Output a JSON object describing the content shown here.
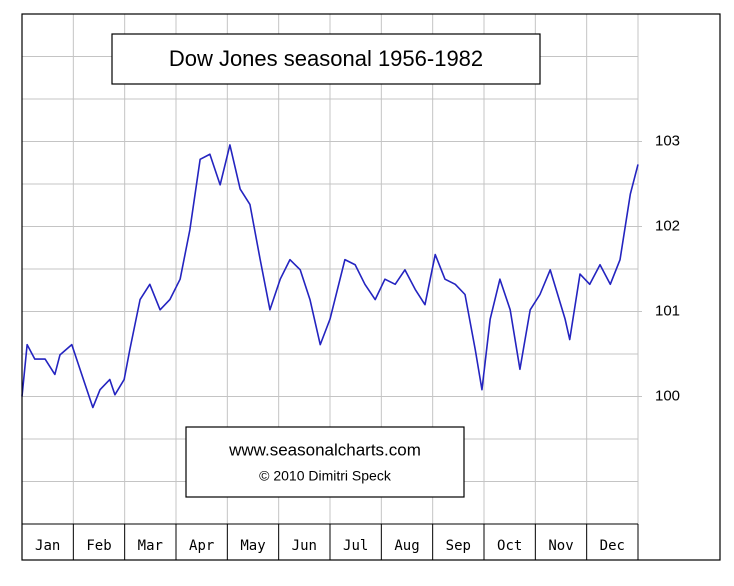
{
  "chart_data": {
    "type": "line",
    "title": "Dow Jones seasonal 1956-1982",
    "annotations": [
      "www.seasonalcharts.com",
      "© 2010   Dimitri Speck"
    ],
    "categories": [
      "Jan",
      "Feb",
      "Mar",
      "Apr",
      "May",
      "Jun",
      "Jul",
      "Aug",
      "Sep",
      "Oct",
      "Nov",
      "Dec"
    ],
    "xlim": [
      0,
      12
    ],
    "ylim": [
      98.5,
      104.5
    ],
    "yticks": [
      100,
      101,
      102,
      103
    ],
    "y_gridlines": [
      99,
      99.5,
      100,
      100.5,
      101,
      101.5,
      102,
      102.5,
      103,
      103.5,
      104
    ],
    "grid": true,
    "series": [
      {
        "name": "Dow Jones",
        "color": "#2424c0",
        "x": [
          0.0,
          0.1,
          0.25,
          0.45,
          0.64,
          0.74,
          0.97,
          1.13,
          1.38,
          1.52,
          1.71,
          1.81,
          1.99,
          2.1,
          2.3,
          2.49,
          2.69,
          2.88,
          3.08,
          3.27,
          3.47,
          3.66,
          3.86,
          4.05,
          4.25,
          4.44,
          4.64,
          4.83,
          5.03,
          5.22,
          5.42,
          5.61,
          5.81,
          6.0,
          6.29,
          6.49,
          6.68,
          6.88,
          7.07,
          7.27,
          7.46,
          7.66,
          7.85,
          8.05,
          8.24,
          8.44,
          8.63,
          8.83,
          8.96,
          9.12,
          9.31,
          9.51,
          9.7,
          9.9,
          10.09,
          10.29,
          10.58,
          10.67,
          10.87,
          11.06,
          11.26,
          11.46,
          11.65,
          11.85,
          12.0
        ],
        "values": [
          100.0,
          100.61,
          100.44,
          100.44,
          100.26,
          100.49,
          100.61,
          100.32,
          99.87,
          100.08,
          100.2,
          100.02,
          100.2,
          100.55,
          101.14,
          101.32,
          101.02,
          101.14,
          101.38,
          101.96,
          102.79,
          102.85,
          102.49,
          102.96,
          102.44,
          102.26,
          101.61,
          101.02,
          101.38,
          101.61,
          101.49,
          101.14,
          100.61,
          100.91,
          101.61,
          101.55,
          101.32,
          101.14,
          101.38,
          101.32,
          101.49,
          101.26,
          101.08,
          101.67,
          101.38,
          101.32,
          101.2,
          100.55,
          100.08,
          100.91,
          101.38,
          101.02,
          100.32,
          101.02,
          101.2,
          101.49,
          100.91,
          100.67,
          101.44,
          101.32,
          101.55,
          101.32,
          101.61,
          102.38,
          102.73
        ]
      }
    ]
  }
}
